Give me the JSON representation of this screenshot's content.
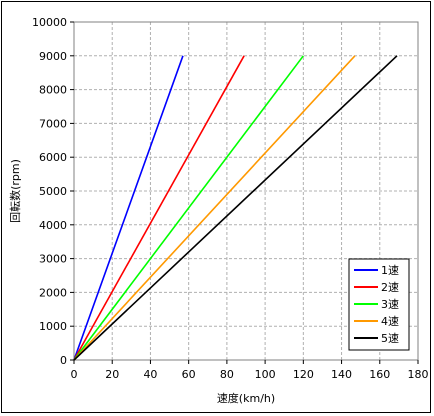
{
  "chart_data": {
    "type": "line",
    "title": "",
    "xlabel": "速度(km/h)",
    "ylabel": "回転数(rpm)",
    "xlim": [
      0,
      180
    ],
    "ylim": [
      0,
      10000
    ],
    "x_ticks": [
      "0",
      "20",
      "40",
      "60",
      "80",
      "100",
      "120",
      "140",
      "160",
      "180"
    ],
    "y_ticks": [
      "0",
      "1000",
      "2000",
      "3000",
      "4000",
      "5000",
      "6000",
      "7000",
      "8000",
      "9000",
      "10000"
    ],
    "grid": "vertical dashed + horizontal dashed",
    "legend_position": "bottom-right",
    "series": [
      {
        "name": "1速",
        "color": "#0000ff",
        "x": [
          0,
          57
        ],
        "y": [
          0,
          9000
        ]
      },
      {
        "name": "2速",
        "color": "#ff0000",
        "x": [
          0,
          89
        ],
        "y": [
          0,
          9000
        ]
      },
      {
        "name": "3速",
        "color": "#00ff00",
        "x": [
          0,
          120
        ],
        "y": [
          0,
          9000
        ]
      },
      {
        "name": "4速",
        "color": "#ff9900",
        "x": [
          0,
          147
        ],
        "y": [
          0,
          9000
        ]
      },
      {
        "name": "5速",
        "color": "#000000",
        "x": [
          0,
          169
        ],
        "y": [
          0,
          9000
        ]
      }
    ]
  }
}
